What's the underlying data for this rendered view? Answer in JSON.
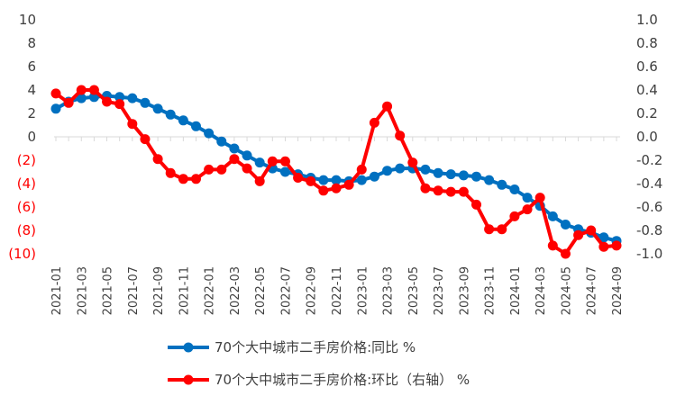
{
  "chart_data": {
    "type": "line",
    "x": [
      "2021-01",
      "2021-02",
      "2021-03",
      "2021-04",
      "2021-05",
      "2021-06",
      "2021-07",
      "2021-08",
      "2021-09",
      "2021-10",
      "2021-11",
      "2021-12",
      "2022-01",
      "2022-02",
      "2022-03",
      "2022-04",
      "2022-05",
      "2022-06",
      "2022-07",
      "2022-08",
      "2022-09",
      "2022-10",
      "2022-11",
      "2022-12",
      "2023-01",
      "2023-02",
      "2023-03",
      "2023-04",
      "2023-05",
      "2023-06",
      "2023-07",
      "2023-08",
      "2023-09",
      "2023-10",
      "2023-11",
      "2023-12",
      "2024-01",
      "2024-02",
      "2024-03",
      "2024-04",
      "2024-05",
      "2024-06",
      "2024-07",
      "2024-08",
      "2024-09"
    ],
    "x_tick_labels": [
      "2021-01",
      "2021-03",
      "2021-05",
      "2021-07",
      "2021-09",
      "2021-11",
      "2022-01",
      "2022-03",
      "2022-05",
      "2022-07",
      "2022-09",
      "2022-11",
      "2023-01",
      "2023-03",
      "2023-05",
      "2023-07",
      "2023-09",
      "2023-11",
      "2024-01",
      "2024-03",
      "2024-05",
      "2024-07",
      "2024-09"
    ],
    "y_left": {
      "ylim": [
        -10,
        10
      ],
      "tick_values": [
        10,
        8,
        6,
        4,
        2,
        0,
        -2,
        -4,
        -6,
        -8,
        -10
      ],
      "tick_labels": [
        "10",
        "8",
        "6",
        "4",
        "2",
        "0",
        "(2)",
        "(4)",
        "(6)",
        "(8)",
        "(10)"
      ],
      "negative_color": "#ff0000",
      "positive_color": "#404040"
    },
    "y_right": {
      "ylim": [
        -1.0,
        1.0
      ],
      "tick_values": [
        1.0,
        0.8,
        0.6,
        0.4,
        0.2,
        0.0,
        -0.2,
        -0.4,
        -0.6,
        -0.8,
        -1.0
      ],
      "tick_labels": [
        "1.0",
        "0.8",
        "0.6",
        "0.4",
        "0.2",
        "0.0",
        "-0.2",
        "-0.4",
        "-0.6",
        "-0.8",
        "-1.0"
      ]
    },
    "series": [
      {
        "name": "70个大中城市二手房价格:同比 %",
        "axis": "left",
        "color": "#0070c0",
        "values": [
          2.4,
          3.0,
          3.3,
          3.4,
          3.5,
          3.4,
          3.3,
          2.9,
          2.4,
          1.9,
          1.4,
          0.9,
          0.3,
          -0.4,
          -1.0,
          -1.6,
          -2.2,
          -2.7,
          -3.0,
          -3.2,
          -3.5,
          -3.7,
          -3.7,
          -3.8,
          -3.7,
          -3.4,
          -2.9,
          -2.7,
          -2.7,
          -2.8,
          -3.1,
          -3.2,
          -3.3,
          -3.4,
          -3.7,
          -4.1,
          -4.5,
          -5.2,
          -5.9,
          -6.8,
          -7.5,
          -7.9,
          -8.2,
          -8.6,
          -8.9
        ]
      },
      {
        "name": "70个大中城市二手房价格:环比（右轴） %",
        "axis": "right",
        "color": "#ff0000",
        "values": [
          0.37,
          0.29,
          0.4,
          0.4,
          0.3,
          0.28,
          0.11,
          -0.02,
          -0.19,
          -0.31,
          -0.36,
          -0.36,
          -0.28,
          -0.28,
          -0.19,
          -0.27,
          -0.38,
          -0.21,
          -0.21,
          -0.35,
          -0.38,
          -0.46,
          -0.44,
          -0.41,
          -0.28,
          0.12,
          0.26,
          0.01,
          -0.22,
          -0.44,
          -0.46,
          -0.47,
          -0.47,
          -0.58,
          -0.79,
          -0.79,
          -0.68,
          -0.62,
          -0.52,
          -0.93,
          -1.0,
          -0.84,
          -0.8,
          -0.94,
          -0.93
        ]
      }
    ],
    "legend": {
      "placement": "bottom",
      "entries": [
        "70个大中城市二手房价格:同比 %",
        "70个大中城市二手房价格:环比（右轴） %"
      ]
    },
    "grid": false,
    "title": "",
    "xlabel": "",
    "ylabel": ""
  }
}
